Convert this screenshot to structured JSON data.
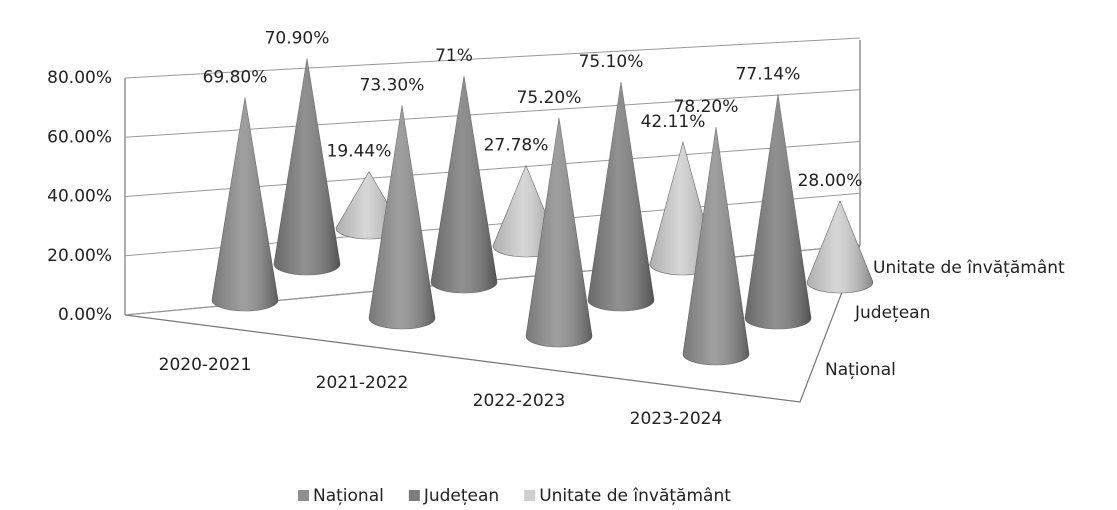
{
  "chart_data": {
    "type": "cone3d",
    "categories": [
      "2020-2021",
      "2021-2022",
      "2022-2023",
      "2023-2024"
    ],
    "series": [
      {
        "name": "Național",
        "color": "#8e8e8e",
        "values": [
          69.8,
          73.3,
          75.2,
          78.2
        ],
        "value_labels": [
          "69.80%",
          "73.30%",
          "75.20%",
          "78.20%"
        ]
      },
      {
        "name": "Județean",
        "color": "#7c7c7c",
        "values": [
          70.9,
          71,
          75.1,
          77.14
        ],
        "value_labels": [
          "70.90%",
          "71%",
          "75.10%",
          "77.14%"
        ]
      },
      {
        "name": "Unitate de învățământ",
        "color": "#cfcfcf",
        "values": [
          19.44,
          27.78,
          42.11,
          28.0
        ],
        "value_labels": [
          "19.44%",
          "27.78%",
          "42.11%",
          "28.00%"
        ]
      }
    ],
    "ylim": [
      0,
      80
    ],
    "yticks": [
      {
        "value": 0,
        "label": "0.00%"
      },
      {
        "value": 20,
        "label": "20.00%"
      },
      {
        "value": 40,
        "label": "40.00%"
      },
      {
        "value": 60,
        "label": "60.00%"
      },
      {
        "value": 80,
        "label": "80.00%"
      }
    ],
    "grid": true,
    "legend": "bottom"
  }
}
